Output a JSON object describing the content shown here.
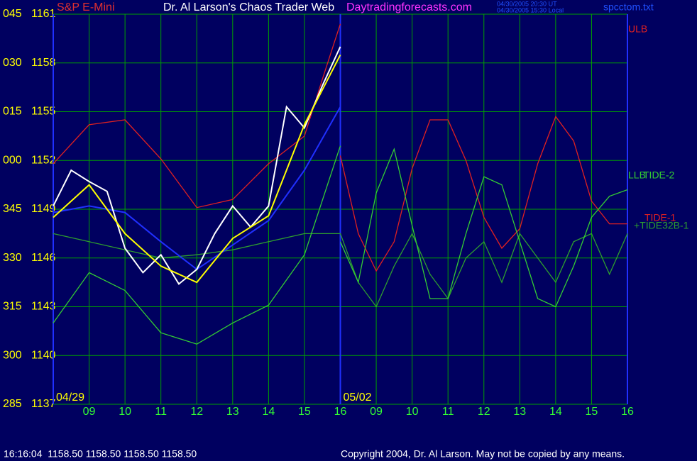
{
  "chart_data": {
    "type": "line",
    "symbol": "S&P E-Mini",
    "title": "Dr. Al Larson's Chaos Trader Web",
    "site": "Daytradingforecasts.com",
    "timestamps": [
      "04/30/2005 20:30 UT",
      "04/30/2005 15:30 Local"
    ],
    "file": "spcctom.txt",
    "status": "16:16:04  1158.50 1158.50 1158.50 1158.50",
    "copyright": "Copyright 2004, Dr. Al Larson. May not be copied by any means.",
    "xlim": [
      0,
      16
    ],
    "xticks": [
      {
        "value": 1,
        "label": "09"
      },
      {
        "value": 2,
        "label": "10"
      },
      {
        "value": 3,
        "label": "11"
      },
      {
        "value": 4,
        "label": "12"
      },
      {
        "value": 5,
        "label": "13"
      },
      {
        "value": 6,
        "label": "14"
      },
      {
        "value": 7,
        "label": "15"
      },
      {
        "value": 8,
        "label": "16"
      },
      {
        "value": 9,
        "label": "09"
      },
      {
        "value": 10,
        "label": "10"
      },
      {
        "value": 11,
        "label": "11"
      },
      {
        "value": 12,
        "label": "12"
      },
      {
        "value": 13,
        "label": "13"
      },
      {
        "value": 14,
        "label": "14"
      },
      {
        "value": 15,
        "label": "15"
      },
      {
        "value": 16,
        "label": "16"
      }
    ],
    "day_labels": [
      {
        "value": 0,
        "label": "04/29"
      },
      {
        "value": 8,
        "label": "05/02"
      }
    ],
    "ylim": [
      1137,
      1161
    ],
    "yticks": [
      1137,
      1140,
      1143,
      1146,
      1149,
      1152,
      1155,
      1158,
      1161
    ],
    "ytick_codes": [
      "285",
      "300",
      "315",
      "330",
      "345",
      "000",
      "015",
      "030",
      "045"
    ],
    "grid": true,
    "series": [
      {
        "name": "+TIDE32B-1",
        "color": "#2e9e2e",
        "x": [
          0,
          1,
          2,
          3,
          4,
          5,
          6,
          7,
          8,
          8.5,
          9,
          9.5,
          10,
          10.5,
          11,
          11.5,
          12,
          12.5,
          13,
          13.5,
          14,
          14.5,
          15,
          15.5,
          16
        ],
        "values": [
          1147.5,
          1147,
          1146.5,
          1146,
          1146.2,
          1146.5,
          1147,
          1147.5,
          1147.5,
          1144.5,
          1143,
          1145.5,
          1147.5,
          1145,
          1143.5,
          1146,
          1147,
          1144.5,
          1147.5,
          1146,
          1144.5,
          1147,
          1147.5,
          1145,
          1147.5
        ]
      },
      {
        "name": "ULB",
        "color": "#e02020",
        "x": [
          0,
          1,
          2,
          3,
          4,
          5,
          6,
          7,
          7.5,
          8
        ],
        "values": [
          1151.8,
          1154.2,
          1154.5,
          1152.1,
          1149.1,
          1149.6,
          1151.8,
          1153.5,
          1157,
          1160.4
        ]
      },
      {
        "name": "LLB",
        "color": "#33cc33",
        "x": [
          0,
          1,
          2,
          3,
          4,
          5,
          6,
          7,
          8
        ],
        "values": [
          1142,
          1145.1,
          1144,
          1141.4,
          1140.7,
          1142,
          1143.1,
          1146.2,
          1152.9
        ]
      },
      {
        "name": "TIDE-1",
        "color": "#e02020",
        "x": [
          8,
          8.5,
          9,
          9.5,
          10,
          10.5,
          11,
          11.5,
          12,
          12.5,
          13,
          13.5,
          14,
          14.5,
          15,
          15.5,
          16
        ],
        "values": [
          1152.3,
          1147.5,
          1145.2,
          1147,
          1151.5,
          1154.5,
          1154.5,
          1152,
          1148.5,
          1146.6,
          1147.8,
          1151.8,
          1154.7,
          1153.2,
          1149.5,
          1148.1,
          1148.1
        ]
      },
      {
        "name": "TIDE-2",
        "color": "#33cc33",
        "x": [
          8,
          8.5,
          9,
          9.5,
          10,
          10.5,
          11,
          11.5,
          12,
          12.5,
          13,
          13.5,
          14,
          14.5,
          15,
          15.5,
          16
        ],
        "values": [
          1147,
          1144.5,
          1150,
          1152.7,
          1148,
          1143.5,
          1143.5,
          1147.5,
          1151,
          1150.5,
          1147,
          1143.5,
          1143,
          1145.5,
          1148.5,
          1149.8,
          1150.2
        ]
      },
      {
        "color": "#2030ff",
        "x": [
          0,
          1,
          2,
          3,
          4,
          5,
          6,
          7,
          8
        ],
        "values": [
          1148.8,
          1149.2,
          1148.8,
          1147,
          1145.3,
          1146.8,
          1148.3,
          1151.4,
          1155.3
        ]
      },
      {
        "color": "#ffffff",
        "x": [
          0,
          0.5,
          1,
          1.5,
          2,
          2.5,
          3,
          3.5,
          4,
          4.5,
          5,
          5.5,
          6,
          6.5,
          7,
          7.5,
          8
        ],
        "values": [
          1149.2,
          1151.4,
          1150.7,
          1150.1,
          1146.6,
          1145.1,
          1146.2,
          1144.4,
          1145.3,
          1147.5,
          1149.2,
          1147.9,
          1149.2,
          1155.3,
          1154,
          1156.6,
          1159
        ]
      },
      {
        "color": "#ffff00",
        "x": [
          0,
          1,
          2,
          3,
          4,
          5,
          6,
          7,
          8
        ],
        "values": [
          1148.5,
          1150.5,
          1147.5,
          1145.5,
          1144.5,
          1147.2,
          1148.6,
          1154.2,
          1158.5
        ]
      }
    ]
  }
}
